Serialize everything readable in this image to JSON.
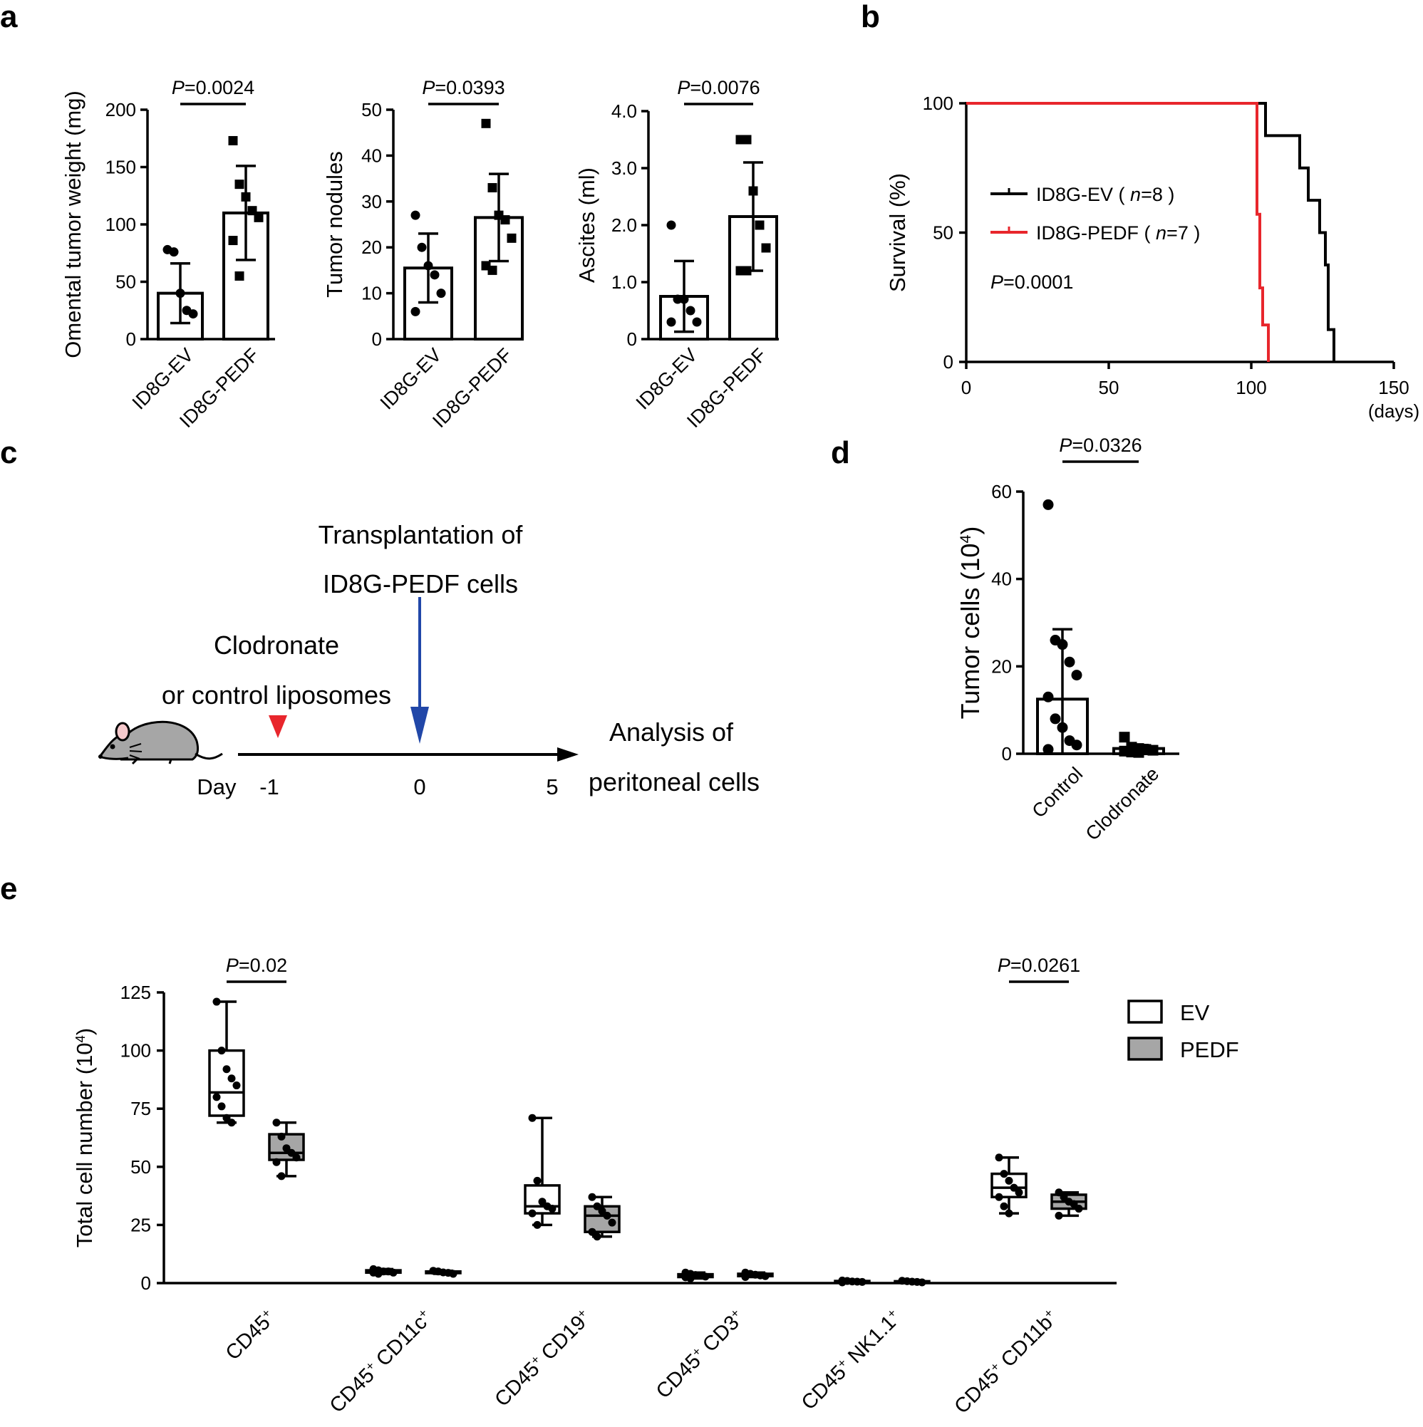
{
  "figure": {
    "panels": [
      "a",
      "b",
      "c",
      "d",
      "e"
    ]
  },
  "chart_data": [
    {
      "id": "a1",
      "type": "bar",
      "categories": [
        "ID8G-EV",
        "ID8G-PEDF"
      ],
      "values": [
        40,
        110
      ],
      "error_sd": [
        26,
        41
      ],
      "points": [
        [
          78,
          76,
          40,
          25,
          22
        ],
        [
          173,
          135,
          124,
          112,
          106,
          86,
          55
        ]
      ],
      "markers": [
        "circle",
        "square"
      ],
      "ylabel": "Omental tumor weight (mg)",
      "yticks": [
        "0",
        "50",
        "100",
        "150",
        "200"
      ],
      "ylim": [
        0,
        200
      ],
      "pvalue": {
        "prefix": "P",
        "value": "=0.0024"
      }
    },
    {
      "id": "a2",
      "type": "bar",
      "categories": [
        "ID8G-EV",
        "ID8G-PEDF"
      ],
      "values": [
        15.5,
        26.5
      ],
      "error_sd": [
        7.5,
        9.5
      ],
      "points": [
        [
          27,
          20,
          16,
          14,
          10,
          6
        ],
        [
          47,
          33,
          27,
          26,
          22,
          16,
          15
        ]
      ],
      "markers": [
        "circle",
        "square"
      ],
      "ylabel": "Tumor nodules",
      "yticks": [
        "0",
        "10",
        "20",
        "30",
        "40",
        "50"
      ],
      "ylim": [
        0,
        50
      ],
      "pvalue": {
        "prefix": "P",
        "value": "=0.0393"
      }
    },
    {
      "id": "a3",
      "type": "bar",
      "categories": [
        "ID8G-EV",
        "ID8G-PEDF"
      ],
      "values": [
        0.75,
        2.15
      ],
      "error_sd": [
        0.62,
        0.95
      ],
      "points": [
        [
          2.0,
          0.7,
          0.7,
          0.5,
          0.3,
          0.3
        ],
        [
          3.5,
          3.5,
          2.6,
          2.0,
          1.6,
          1.2,
          1.2
        ]
      ],
      "markers": [
        "circle",
        "square"
      ],
      "ylabel": "Ascites (ml)",
      "yticks": [
        "0",
        "1.0",
        "2.0",
        "3.0",
        "4.0"
      ],
      "ylim": [
        0,
        4
      ],
      "pvalue": {
        "prefix": "P",
        "value": "=0.0076"
      }
    },
    {
      "id": "b",
      "type": "line",
      "subtype": "kaplan-meier",
      "ylabel": "Survival (%)",
      "xlabel": "(days)",
      "xticks": [
        "0",
        "50",
        "100",
        "150"
      ],
      "yticks": [
        "0",
        "50",
        "100"
      ],
      "xlim": [
        0,
        150
      ],
      "ylim": [
        0,
        100
      ],
      "series": [
        {
          "name": "ID8G-EV",
          "n_label": "n",
          "n_value": "=8",
          "color": "#000000",
          "steps": [
            [
              0,
              100
            ],
            [
              105,
              100
            ],
            [
              105,
              87.5
            ],
            [
              117,
              87.5
            ],
            [
              117,
              75
            ],
            [
              120,
              75
            ],
            [
              120,
              62.5
            ],
            [
              124,
              62.5
            ],
            [
              124,
              50
            ],
            [
              126,
              50
            ],
            [
              126,
              37.5
            ],
            [
              127,
              37.5
            ],
            [
              127,
              12.5
            ],
            [
              129,
              12.5
            ],
            [
              129,
              0
            ]
          ]
        },
        {
          "name": "ID8G-PEDF",
          "n_label": "n",
          "n_value": "=7",
          "color": "#e8262c",
          "steps": [
            [
              0,
              100
            ],
            [
              102,
              100
            ],
            [
              102,
              57.1
            ],
            [
              103,
              57.1
            ],
            [
              103,
              28.6
            ],
            [
              104,
              28.6
            ],
            [
              104,
              14.3
            ],
            [
              106,
              14.3
            ],
            [
              106,
              0
            ]
          ]
        }
      ],
      "pvalue": {
        "prefix": "P",
        "value": "=0.0001"
      }
    },
    {
      "id": "d",
      "type": "bar",
      "categories": [
        "Control",
        "Clodronate"
      ],
      "values": [
        12.5,
        1.2
      ],
      "error_sd": [
        16,
        0.8
      ],
      "points": [
        [
          57,
          26,
          25,
          21,
          18,
          13,
          8,
          6,
          3,
          2,
          1
        ],
        [
          3.8,
          1.5,
          1.2,
          1.0,
          0.8,
          0.6,
          0.4,
          0.3
        ]
      ],
      "markers": [
        "circle",
        "square"
      ],
      "ylabel_main": "Tumor cells (10",
      "ylabel_sup": "4",
      "ylabel_close": ")",
      "yticks": [
        "0",
        "20",
        "40",
        "60"
      ],
      "ylim": [
        0,
        60
      ],
      "pvalue": {
        "prefix": "P",
        "value": "=0.0326"
      }
    },
    {
      "id": "e",
      "type": "box",
      "ylabel_main": "Total cell number (10",
      "ylabel_sup": "4",
      "ylabel_close": ")",
      "yticks": [
        "0",
        "25",
        "50",
        "75",
        "100",
        "125"
      ],
      "ylim": [
        0,
        125
      ],
      "legend": [
        {
          "name": "EV",
          "color": "#ffffff"
        },
        {
          "name": "PEDF",
          "color": "#a6a6a6"
        }
      ],
      "groups": [
        {
          "main": "CD45",
          "sup": "+",
          "main2": "",
          "sup2": "",
          "ev": {
            "min": 69,
            "q1": 72,
            "median": 82,
            "q3": 100,
            "max": 121,
            "points": [
              121,
              100,
              92,
              88,
              85,
              80,
              76,
              71,
              69
            ]
          },
          "pedf": {
            "min": 46,
            "q1": 53,
            "median": 56,
            "q3": 64,
            "max": 69,
            "points": [
              69,
              63,
              58,
              56,
              54,
              52,
              46
            ]
          }
        },
        {
          "main": "CD45",
          "sup": "+",
          "main2": " CD11c",
          "sup2": "+",
          "ev": {
            "min": 4,
            "q1": 4.5,
            "median": 5,
            "q3": 5.5,
            "max": 6,
            "points": [
              6,
              5.5,
              5,
              5,
              4.5,
              4.5,
              4
            ]
          },
          "pedf": {
            "min": 4,
            "q1": 4.3,
            "median": 4.6,
            "q3": 5,
            "max": 5.3,
            "points": [
              5.3,
              5,
              4.6,
              4.4,
              4
            ]
          }
        },
        {
          "main": "CD45",
          "sup": "+",
          "main2": " CD19",
          "sup2": "+",
          "ev": {
            "min": 25,
            "q1": 30,
            "median": 33,
            "q3": 42,
            "max": 71,
            "points": [
              71,
              44,
              35,
              33,
              32,
              30,
              25
            ]
          },
          "pedf": {
            "min": 20,
            "q1": 22,
            "median": 29,
            "q3": 33,
            "max": 37,
            "points": [
              37,
              33,
              31,
              29,
              26,
              22,
              20
            ]
          }
        },
        {
          "main": "CD45",
          "sup": "+",
          "main2": " CD3",
          "sup2": "+",
          "ev": {
            "min": 2,
            "q1": 2.6,
            "median": 3.2,
            "q3": 3.8,
            "max": 4.5,
            "points": [
              4.5,
              4,
              3.5,
              3.2,
              2.8,
              2.5,
              2
            ]
          },
          "pedf": {
            "min": 2.6,
            "q1": 3,
            "median": 3.5,
            "q3": 4,
            "max": 4.5,
            "points": [
              4.5,
              4,
              3.6,
              3.3,
              3,
              2.6
            ]
          }
        },
        {
          "main": "CD45",
          "sup": "+",
          "main2": " NK1.1",
          "sup2": "+",
          "ev": {
            "min": 0.3,
            "q1": 0.5,
            "median": 0.7,
            "q3": 0.9,
            "max": 1.1,
            "points": [
              1.1,
              0.9,
              0.7,
              0.6,
              0.5,
              0.3
            ]
          },
          "pedf": {
            "min": 0.3,
            "q1": 0.5,
            "median": 0.6,
            "q3": 0.8,
            "max": 1.0,
            "points": [
              1.0,
              0.8,
              0.6,
              0.5,
              0.3
            ]
          }
        },
        {
          "main": "CD45",
          "sup": "+",
          "main2": " CD11b",
          "sup2": "+",
          "ev": {
            "min": 30,
            "q1": 37,
            "median": 41,
            "q3": 47,
            "max": 54,
            "points": [
              54,
              47,
              44,
              41,
              39,
              37,
              33,
              30
            ]
          },
          "pedf": {
            "min": 29,
            "q1": 32,
            "median": 35,
            "q3": 38,
            "max": 39,
            "points": [
              39,
              37,
              35,
              34,
              32,
              29
            ]
          }
        }
      ],
      "pvalues": [
        {
          "group": 0,
          "prefix": "P",
          "value": "=0.02"
        },
        {
          "group": 5,
          "prefix": "P",
          "value": "=0.0261"
        }
      ]
    }
  ],
  "schematic": {
    "transplant_line1": "Transplantation of",
    "transplant_line2": "ID8G-PEDF cells",
    "clodronate_line1": "Clodronate",
    "clodronate_line2": "or control liposomes",
    "analysis_line1": "Analysis of",
    "analysis_line2": "peritoneal cells",
    "day_label": "Day",
    "day_ticks": [
      "-1",
      "0",
      "5"
    ],
    "triangle_color": "#e8262c",
    "arrow_color": "#2147a8"
  }
}
